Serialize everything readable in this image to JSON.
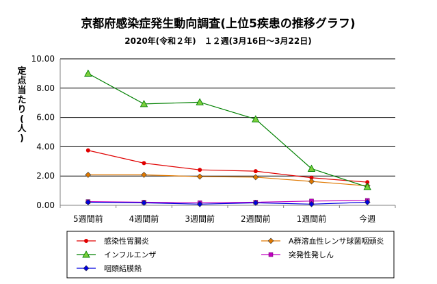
{
  "chart_data": {
    "type": "line",
    "title": "京都府感染症発生動向調査(上位5疾患の推移グラフ)",
    "subtitle": "2020年(令和２年)　１２週(3月16日～3月22日)",
    "ylabel": "定点当たり(人)",
    "xlabel": "",
    "categories": [
      "5週間前",
      "4週間前",
      "3週間前",
      "2週間前",
      "1週間前",
      "今週"
    ],
    "ylim": [
      0,
      10
    ],
    "yticks": [
      "0.00",
      "2.00",
      "4.00",
      "6.00",
      "8.00",
      "10.00"
    ],
    "grid": true,
    "legend_position": "bottom",
    "series": [
      {
        "name": "感染性胃腸炎",
        "color": "#e00000",
        "marker": "circle",
        "values": [
          3.75,
          2.88,
          2.42,
          2.33,
          1.88,
          1.58
        ]
      },
      {
        "name": "A群溶血性レンサ球菌咽頭炎",
        "color": "#e07800",
        "marker": "diamond",
        "values": [
          2.08,
          2.08,
          1.96,
          1.92,
          1.63,
          1.33
        ]
      },
      {
        "name": "インフルエンザ",
        "color": "#008000",
        "marker": "triangle",
        "values": [
          9.0,
          6.92,
          7.04,
          5.88,
          2.5,
          1.25
        ]
      },
      {
        "name": "突発性発しん",
        "color": "#c000c0",
        "marker": "square",
        "values": [
          0.25,
          0.21,
          0.17,
          0.21,
          0.29,
          0.33
        ]
      },
      {
        "name": "咽頭結膜熱",
        "color": "#0000e0",
        "marker": "diamond",
        "values": [
          0.21,
          0.17,
          0.08,
          0.17,
          0.08,
          0.21
        ]
      }
    ]
  }
}
